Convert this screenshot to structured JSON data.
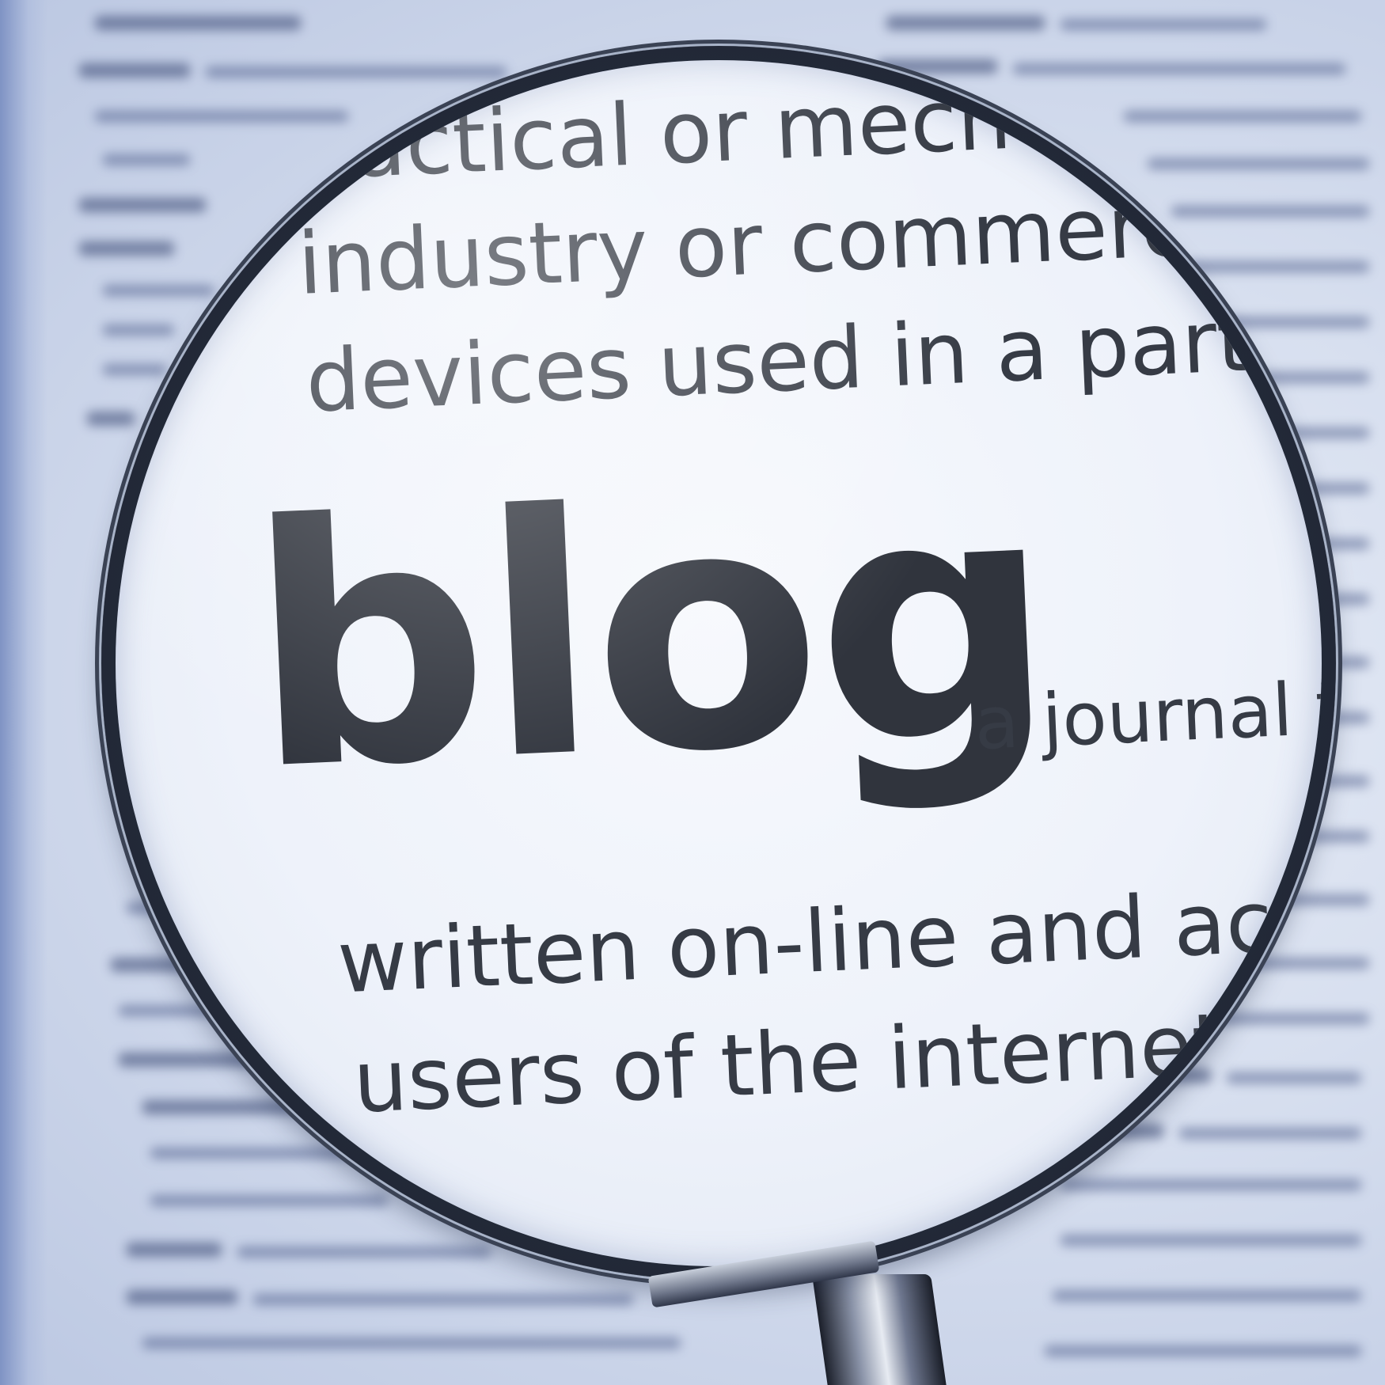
{
  "scene": {
    "lens_lines": [
      "actical or mech",
      "industry or commerce",
      "devices used in a particu",
      "blog",
      "a journal t",
      "written on-line and acce",
      "users of the internet."
    ]
  },
  "icons": {
    "lens": "magnifying-glass-icon"
  }
}
